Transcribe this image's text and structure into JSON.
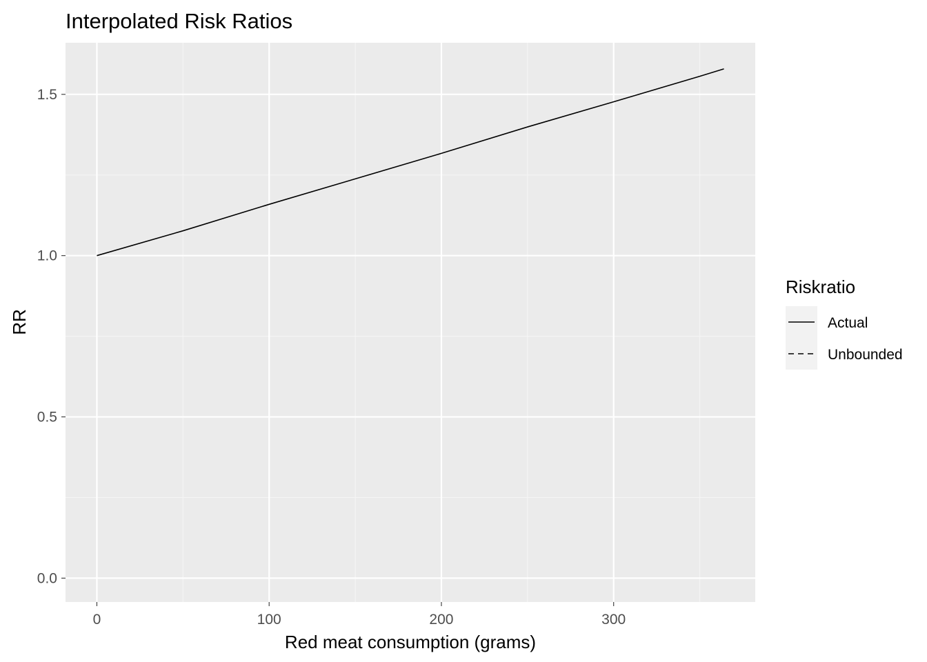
{
  "chart_data": {
    "type": "line",
    "title": "Interpolated Risk Ratios",
    "xlabel": "Red meat consumption (grams)",
    "ylabel": "RR",
    "xlim": [
      -18.2,
      382.2
    ],
    "ylim": [
      -0.074,
      1.66
    ],
    "x_ticks": [
      0,
      100,
      200,
      300
    ],
    "x_minor_ticks": [
      50,
      150,
      250,
      350
    ],
    "y_ticks": [
      0.0,
      0.5,
      1.0,
      1.5
    ],
    "y_minor_ticks": [
      0.25,
      0.75,
      1.25
    ],
    "x_tick_labels": [
      "0",
      "100",
      "200",
      "300"
    ],
    "y_tick_labels": [
      "0.0",
      "0.5",
      "1.0",
      "1.5"
    ],
    "grid": true,
    "legend": {
      "title": "Riskratio",
      "position": "right",
      "entries": [
        {
          "label": "Actual",
          "linetype": "solid"
        },
        {
          "label": "Unbounded",
          "linetype": "dashed"
        }
      ]
    },
    "series": [
      {
        "name": "Actual",
        "linetype": "solid",
        "color": "#000000",
        "x": [
          0,
          50,
          100,
          150,
          200,
          250,
          300,
          350,
          364
        ],
        "y": [
          1.0,
          1.077,
          1.159,
          1.238,
          1.317,
          1.399,
          1.477,
          1.556,
          1.579
        ]
      }
    ]
  },
  "colors": {
    "panel_background": "#ebebeb",
    "grid_major": "#ffffff",
    "grid_minor": "#f5f5f5",
    "legend_key_background": "#f2f2f2",
    "tick_text": "#4d4d4d",
    "tick_mark": "#333333",
    "line": "#000000"
  }
}
